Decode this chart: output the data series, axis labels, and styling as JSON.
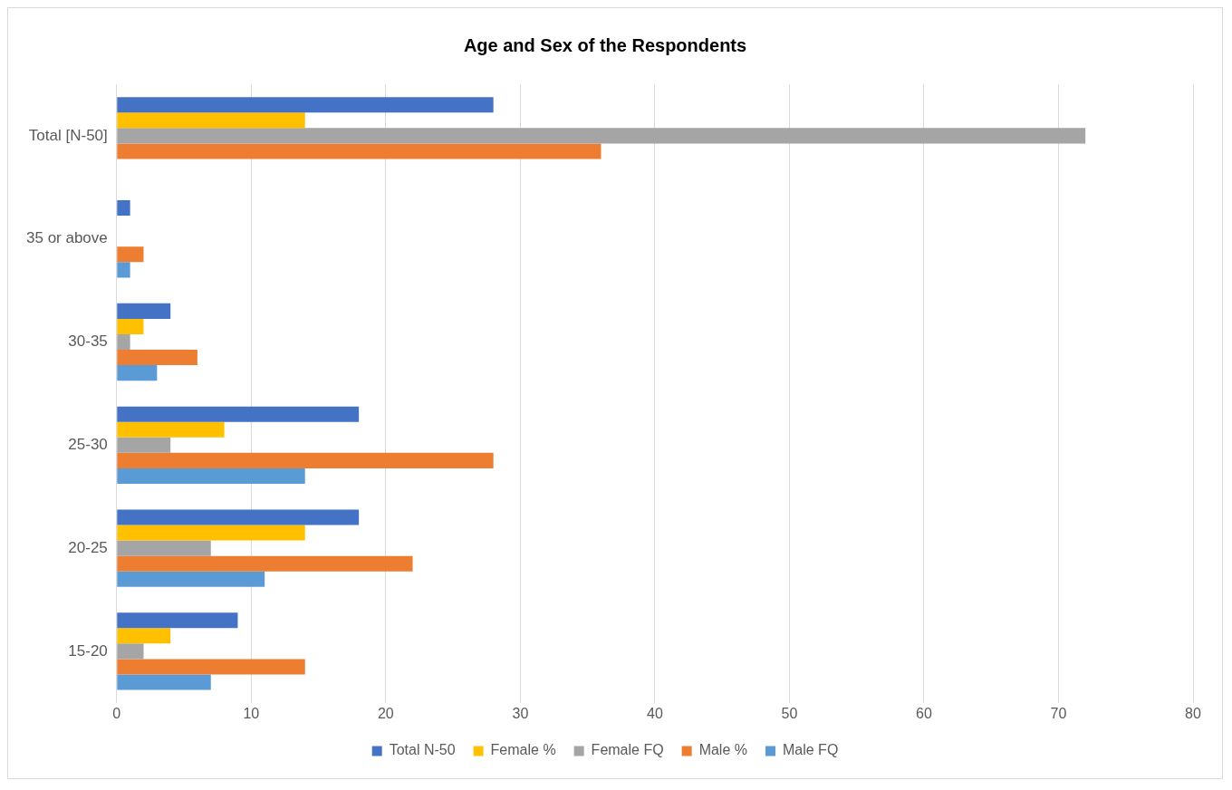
{
  "chart_data": {
    "type": "bar",
    "orientation": "horizontal",
    "title": "Age and Sex of the Respondents",
    "categories": [
      "Total [N-50]",
      "35 or above",
      "30-35",
      "25-30",
      "20-25",
      "15-20"
    ],
    "series": [
      {
        "name": "Total N-50",
        "color": "#4472c4",
        "values": [
          28,
          1,
          4,
          18,
          18,
          9
        ]
      },
      {
        "name": "Female %",
        "color": "#ffc000",
        "values": [
          14,
          null,
          2,
          8,
          14,
          4
        ]
      },
      {
        "name": "Female FQ",
        "color": "#a5a5a5",
        "values": [
          72,
          null,
          1,
          4,
          7,
          2
        ]
      },
      {
        "name": "Male %",
        "color": "#ed7d31",
        "values": [
          36,
          2,
          6,
          28,
          22,
          14
        ]
      },
      {
        "name": "Male FQ",
        "color": "#5b9bd5",
        "values": [
          null,
          1,
          3,
          14,
          11,
          7
        ]
      }
    ],
    "xlim": [
      0,
      80
    ],
    "xticks": [
      0,
      10,
      20,
      30,
      40,
      50,
      60,
      70,
      80
    ],
    "grid": "x",
    "legend": "bottom"
  }
}
